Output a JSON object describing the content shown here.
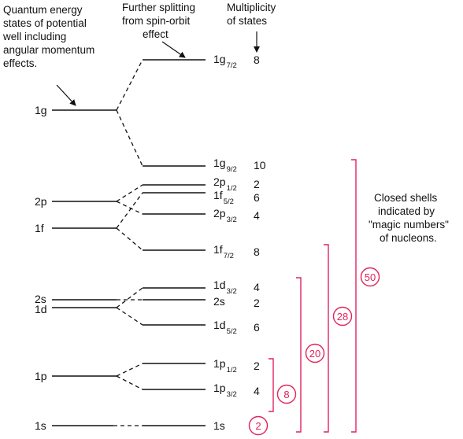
{
  "annotations": {
    "left_note": [
      "Quantum energy",
      "states of potential",
      "well including",
      "angular momentum",
      "effects."
    ],
    "middle_note": [
      "Further splitting",
      "from spin-orbit",
      "effect"
    ],
    "right_note": [
      "Multiplicity",
      "of states"
    ],
    "closed_shells_note": [
      "Closed shells",
      "indicated by",
      "\"magic numbers\"",
      "of nucleons."
    ]
  },
  "left_levels": [
    {
      "id": "1g",
      "label": "1g"
    },
    {
      "id": "2p",
      "label": "2p"
    },
    {
      "id": "1f",
      "label": "1f"
    },
    {
      "id": "2s",
      "label": "2s"
    },
    {
      "id": "1d",
      "label": "1d"
    },
    {
      "id": "1p",
      "label": "1p"
    },
    {
      "id": "1s",
      "label": "1s"
    }
  ],
  "right_levels": [
    {
      "id": "1g72",
      "main": "1g",
      "sub": "7/2",
      "mult": "8"
    },
    {
      "id": "1g92",
      "main": "1g",
      "sub": "9/2",
      "mult": "10"
    },
    {
      "id": "2p12",
      "main": "2p",
      "sub": "1/2",
      "mult": "2"
    },
    {
      "id": "1f52",
      "main": "1f",
      "sub": "5/2",
      "mult": "6"
    },
    {
      "id": "2p32",
      "main": "2p",
      "sub": "3/2",
      "mult": "4"
    },
    {
      "id": "1f72",
      "main": "1f",
      "sub": "7/2",
      "mult": "8"
    },
    {
      "id": "1d32",
      "main": "1d",
      "sub": "3/2",
      "mult": "4"
    },
    {
      "id": "2s",
      "main": "2s",
      "sub": "",
      "mult": "2"
    },
    {
      "id": "1d52",
      "main": "1d",
      "sub": "5/2",
      "mult": "6"
    },
    {
      "id": "1p12",
      "main": "1p",
      "sub": "1/2",
      "mult": "2"
    },
    {
      "id": "1p32",
      "main": "1p",
      "sub": "3/2",
      "mult": "4"
    },
    {
      "id": "1s",
      "main": "1s",
      "sub": "",
      "mult": "2"
    }
  ],
  "magic_numbers": [
    "2",
    "8",
    "20",
    "28",
    "50"
  ],
  "colors": {
    "line": "#111111",
    "magic": "#e0245e"
  }
}
